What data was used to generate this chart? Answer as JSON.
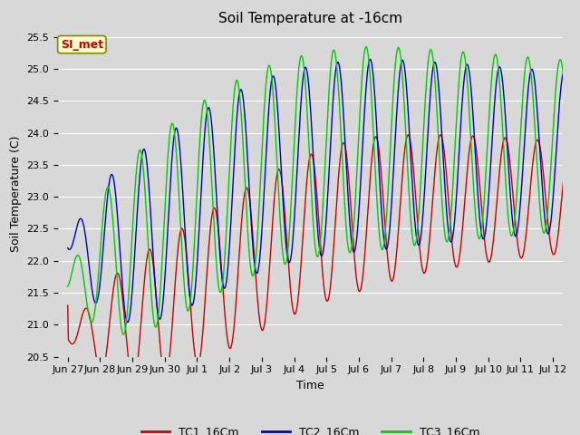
{
  "title": "Soil Temperature at -16cm",
  "xlabel": "Time",
  "ylabel": "Soil Temperature (C)",
  "ylim": [
    20.5,
    25.6
  ],
  "legend_labels": [
    "TC1_16Cm",
    "TC2_16Cm",
    "TC3_16Cm"
  ],
  "legend_colors": [
    "#cc0000",
    "#0000cc",
    "#00cc00"
  ],
  "watermark_text": "SI_met",
  "watermark_bg": "#ffffcc",
  "watermark_fg": "#cc0000",
  "bg_color": "#d8d8d8",
  "plot_bg": "#d8d8d8",
  "grid_color": "#ffffff",
  "title_fontsize": 11,
  "axis_fontsize": 9,
  "tick_fontsize": 8,
  "yticks": [
    20.5,
    21.0,
    21.5,
    22.0,
    22.5,
    23.0,
    23.5,
    24.0,
    24.5,
    25.0,
    25.5
  ],
  "xtick_labels": [
    "Jun 27",
    "Jun 28",
    "Jun 29",
    "Jun 30",
    "Jul 1",
    "Jul 2",
    "Jul 3",
    "Jul 4",
    "Jul 5",
    "Jul 6",
    "Jul 7",
    "Jul 8",
    "Jul 9",
    "Jul 10",
    "Jul 11",
    "Jul 12"
  ],
  "xtick_positions": [
    0,
    1,
    2,
    3,
    4,
    5,
    6,
    7,
    8,
    9,
    10,
    11,
    12,
    13,
    14,
    15
  ]
}
